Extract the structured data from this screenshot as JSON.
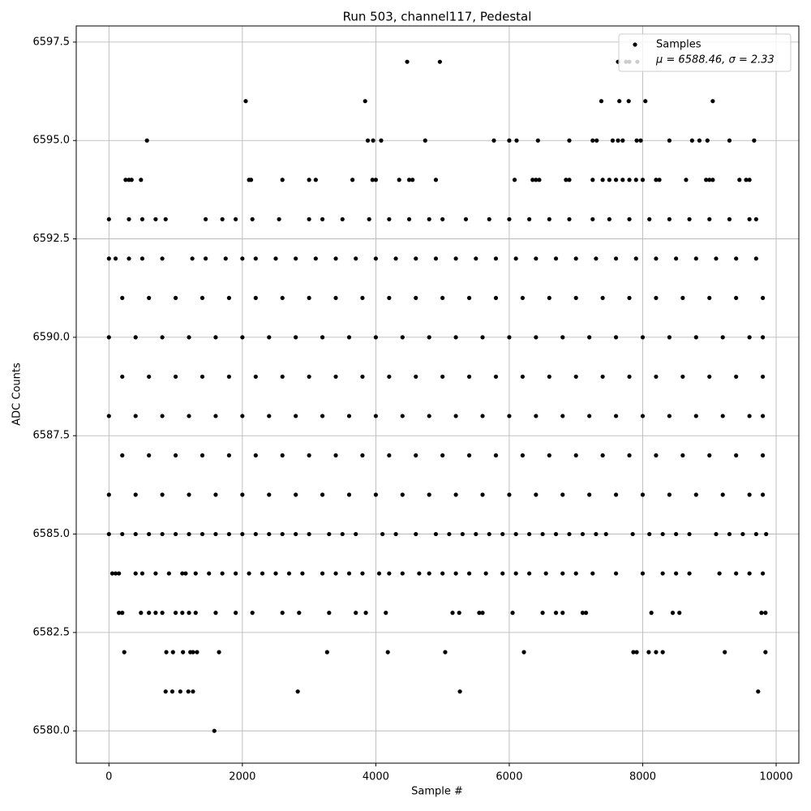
{
  "chart_data": {
    "type": "scatter",
    "title": "Run 503, channel117, Pedestal",
    "x_label": "Sample #",
    "y_label": "ADC Counts",
    "xlim": [
      -490,
      10340
    ],
    "ylim": [
      6579.18,
      6597.91
    ],
    "xticks": [
      0,
      2000,
      4000,
      6000,
      8000,
      10000
    ],
    "yticks": [
      {
        "value": 6580,
        "label": "6580.0"
      },
      6582.5,
      {
        "value": 6585,
        "label": "6585.0"
      },
      6587.5,
      {
        "value": 6590,
        "label": "6590.0"
      },
      6592.5,
      {
        "value": 6595,
        "label": "6595.0"
      },
      6597.5
    ],
    "grid": true,
    "legend": "upper right",
    "legend_note": "μ = 6588.46, σ = 2.33",
    "series": [
      {
        "name": "Samples",
        "color": "#000000",
        "x": [
          1580,
          850,
          950,
          1070,
          1190,
          1260,
          2830,
          5260,
          9730,
          230,
          860,
          960,
          1110,
          1220,
          1260,
          1320,
          1650,
          3270,
          4180,
          5040,
          6220,
          7860,
          7910,
          8090,
          8200,
          8300,
          9230,
          9840,
          150,
          200,
          480,
          600,
          700,
          800,
          1000,
          1100,
          1200,
          1300,
          1600,
          1900,
          2150,
          2600,
          2850,
          3300,
          3700,
          3850,
          4150,
          5150,
          5250,
          5550,
          5600,
          6050,
          6500,
          6700,
          6800,
          7100,
          7150,
          8130,
          8450,
          8550,
          9780,
          9840,
          50,
          100,
          150,
          400,
          500,
          700,
          900,
          1100,
          1150,
          1300,
          1500,
          1700,
          1900,
          2100,
          2300,
          2500,
          2700,
          2900,
          3200,
          3400,
          3600,
          3800,
          4050,
          4200,
          4400,
          4650,
          4800,
          5000,
          5200,
          5400,
          5650,
          5900,
          6100,
          6300,
          6550,
          6800,
          7000,
          7250,
          7600,
          8000,
          8300,
          8500,
          8700,
          9150,
          9400,
          9600,
          9800,
          0,
          200,
          400,
          600,
          800,
          1000,
          1200,
          1400,
          1600,
          1800,
          2000,
          2200,
          2400,
          2600,
          2800,
          3000,
          3300,
          3500,
          3700,
          4100,
          4300,
          4600,
          4900,
          5100,
          5300,
          5500,
          5700,
          5900,
          6100,
          6300,
          6500,
          6700,
          6900,
          7100,
          7300,
          7450,
          7850,
          8100,
          8300,
          8500,
          8700,
          9100,
          9300,
          9500,
          9700,
          9850,
          0,
          400,
          800,
          1200,
          1600,
          2000,
          2400,
          2800,
          3200,
          3600,
          4000,
          4400,
          4800,
          5200,
          5600,
          6000,
          6400,
          6800,
          7200,
          7600,
          8000,
          8400,
          8800,
          9200,
          9600,
          9800,
          200,
          600,
          1000,
          1400,
          1800,
          2200,
          2600,
          3000,
          3400,
          3800,
          4200,
          4600,
          5000,
          5400,
          5800,
          6200,
          6600,
          7000,
          7400,
          7800,
          8200,
          8600,
          9000,
          9400,
          9800,
          0,
          400,
          800,
          1200,
          1600,
          2000,
          2400,
          2800,
          3200,
          3600,
          4000,
          4400,
          4800,
          5200,
          5600,
          6000,
          6400,
          6800,
          7200,
          7600,
          8000,
          8400,
          8800,
          9200,
          9600,
          9800,
          200,
          600,
          1000,
          1400,
          1800,
          2200,
          2600,
          3000,
          3400,
          3800,
          4200,
          4600,
          5000,
          5400,
          5800,
          6200,
          6600,
          7000,
          7400,
          7800,
          8200,
          8600,
          9000,
          9400,
          9800,
          0,
          400,
          800,
          1200,
          1600,
          2000,
          2400,
          2800,
          3200,
          3600,
          4000,
          4400,
          4800,
          5200,
          5600,
          6000,
          6400,
          6800,
          7200,
          7600,
          8000,
          8400,
          8800,
          9200,
          9600,
          9800,
          200,
          600,
          1000,
          1400,
          1800,
          2200,
          2600,
          3000,
          3400,
          3800,
          4200,
          4600,
          5000,
          5400,
          5800,
          6200,
          6600,
          7000,
          7400,
          7800,
          8200,
          8600,
          9000,
          9400,
          9800,
          0,
          100,
          300,
          500,
          800,
          1250,
          1450,
          1750,
          2000,
          2200,
          2500,
          2800,
          3100,
          3400,
          3700,
          4000,
          4300,
          4600,
          4900,
          5200,
          5500,
          5800,
          6100,
          6400,
          6700,
          7000,
          7300,
          7600,
          7900,
          8200,
          8500,
          8800,
          9100,
          9400,
          9700,
          0,
          300,
          500,
          700,
          850,
          1450,
          1700,
          1900,
          2150,
          2550,
          3000,
          3200,
          3500,
          3900,
          4200,
          4500,
          4800,
          5000,
          5350,
          5700,
          6000,
          6300,
          6600,
          6900,
          7250,
          7500,
          7800,
          8100,
          8400,
          8700,
          9000,
          9300,
          9600,
          9700,
          250,
          300,
          340,
          480,
          2100,
          2130,
          2600,
          3000,
          3100,
          3650,
          3950,
          4000,
          4350,
          4500,
          4550,
          4900,
          6080,
          6350,
          6400,
          6450,
          6850,
          6900,
          7250,
          7400,
          7500,
          7600,
          7700,
          7800,
          7900,
          8000,
          8200,
          8250,
          8650,
          8950,
          9000,
          9050,
          9450,
          9550,
          9600,
          570,
          3880,
          3960,
          4080,
          4740,
          5770,
          6000,
          6110,
          6430,
          6900,
          7250,
          7310,
          7550,
          7630,
          7700,
          7910,
          7970,
          8400,
          8740,
          8850,
          8970,
          9300,
          9670,
          2050,
          3840,
          7380,
          7650,
          7790,
          8040,
          9050,
          4470,
          4960,
          7630,
          7750,
          7800,
          7920
        ],
        "y": [
          6580,
          6581,
          6581,
          6581,
          6581,
          6581,
          6581,
          6581,
          6581,
          6582,
          6582,
          6582,
          6582,
          6582,
          6582,
          6582,
          6582,
          6582,
          6582,
          6582,
          6582,
          6582,
          6582,
          6582,
          6582,
          6582,
          6582,
          6582,
          6583,
          6583,
          6583,
          6583,
          6583,
          6583,
          6583,
          6583,
          6583,
          6583,
          6583,
          6583,
          6583,
          6583,
          6583,
          6583,
          6583,
          6583,
          6583,
          6583,
          6583,
          6583,
          6583,
          6583,
          6583,
          6583,
          6583,
          6583,
          6583,
          6583,
          6583,
          6583,
          6583,
          6583,
          6584,
          6584,
          6584,
          6584,
          6584,
          6584,
          6584,
          6584,
          6584,
          6584,
          6584,
          6584,
          6584,
          6584,
          6584,
          6584,
          6584,
          6584,
          6584,
          6584,
          6584,
          6584,
          6584,
          6584,
          6584,
          6584,
          6584,
          6584,
          6584,
          6584,
          6584,
          6584,
          6584,
          6584,
          6584,
          6584,
          6584,
          6584,
          6584,
          6584,
          6584,
          6584,
          6584,
          6584,
          6584,
          6584,
          6584,
          6585,
          6585,
          6585,
          6585,
          6585,
          6585,
          6585,
          6585,
          6585,
          6585,
          6585,
          6585,
          6585,
          6585,
          6585,
          6585,
          6585,
          6585,
          6585,
          6585,
          6585,
          6585,
          6585,
          6585,
          6585,
          6585,
          6585,
          6585,
          6585,
          6585,
          6585,
          6585,
          6585,
          6585,
          6585,
          6585,
          6585,
          6585,
          6585,
          6585,
          6585,
          6585,
          6585,
          6585,
          6585,
          6585,
          6586,
          6586,
          6586,
          6586,
          6586,
          6586,
          6586,
          6586,
          6586,
          6586,
          6586,
          6586,
          6586,
          6586,
          6586,
          6586,
          6586,
          6586,
          6586,
          6586,
          6586,
          6586,
          6586,
          6586,
          6586,
          6586,
          6587,
          6587,
          6587,
          6587,
          6587,
          6587,
          6587,
          6587,
          6587,
          6587,
          6587,
          6587,
          6587,
          6587,
          6587,
          6587,
          6587,
          6587,
          6587,
          6587,
          6587,
          6587,
          6587,
          6587,
          6587,
          6588,
          6588,
          6588,
          6588,
          6588,
          6588,
          6588,
          6588,
          6588,
          6588,
          6588,
          6588,
          6588,
          6588,
          6588,
          6588,
          6588,
          6588,
          6588,
          6588,
          6588,
          6588,
          6588,
          6588,
          6588,
          6588,
          6589,
          6589,
          6589,
          6589,
          6589,
          6589,
          6589,
          6589,
          6589,
          6589,
          6589,
          6589,
          6589,
          6589,
          6589,
          6589,
          6589,
          6589,
          6589,
          6589,
          6589,
          6589,
          6589,
          6589,
          6589,
          6590,
          6590,
          6590,
          6590,
          6590,
          6590,
          6590,
          6590,
          6590,
          6590,
          6590,
          6590,
          6590,
          6590,
          6590,
          6590,
          6590,
          6590,
          6590,
          6590,
          6590,
          6590,
          6590,
          6590,
          6590,
          6590,
          6591,
          6591,
          6591,
          6591,
          6591,
          6591,
          6591,
          6591,
          6591,
          6591,
          6591,
          6591,
          6591,
          6591,
          6591,
          6591,
          6591,
          6591,
          6591,
          6591,
          6591,
          6591,
          6591,
          6591,
          6591,
          6592,
          6592,
          6592,
          6592,
          6592,
          6592,
          6592,
          6592,
          6592,
          6592,
          6592,
          6592,
          6592,
          6592,
          6592,
          6592,
          6592,
          6592,
          6592,
          6592,
          6592,
          6592,
          6592,
          6592,
          6592,
          6592,
          6592,
          6592,
          6592,
          6592,
          6592,
          6592,
          6592,
          6592,
          6592,
          6593,
          6593,
          6593,
          6593,
          6593,
          6593,
          6593,
          6593,
          6593,
          6593,
          6593,
          6593,
          6593,
          6593,
          6593,
          6593,
          6593,
          6593,
          6593,
          6593,
          6593,
          6593,
          6593,
          6593,
          6593,
          6593,
          6593,
          6593,
          6593,
          6593,
          6593,
          6593,
          6593,
          6593,
          6594,
          6594,
          6594,
          6594,
          6594,
          6594,
          6594,
          6594,
          6594,
          6594,
          6594,
          6594,
          6594,
          6594,
          6594,
          6594,
          6594,
          6594,
          6594,
          6594,
          6594,
          6594,
          6594,
          6594,
          6594,
          6594,
          6594,
          6594,
          6594,
          6594,
          6594,
          6594,
          6594,
          6594,
          6594,
          6594,
          6594,
          6594,
          6594,
          6595,
          6595,
          6595,
          6595,
          6595,
          6595,
          6595,
          6595,
          6595,
          6595,
          6595,
          6595,
          6595,
          6595,
          6595,
          6595,
          6595,
          6595,
          6595,
          6595,
          6595,
          6595,
          6595,
          6596,
          6596,
          6596,
          6596,
          6596,
          6596,
          6596,
          6597,
          6597,
          6597,
          6597,
          6597,
          6597
        ]
      }
    ]
  }
}
